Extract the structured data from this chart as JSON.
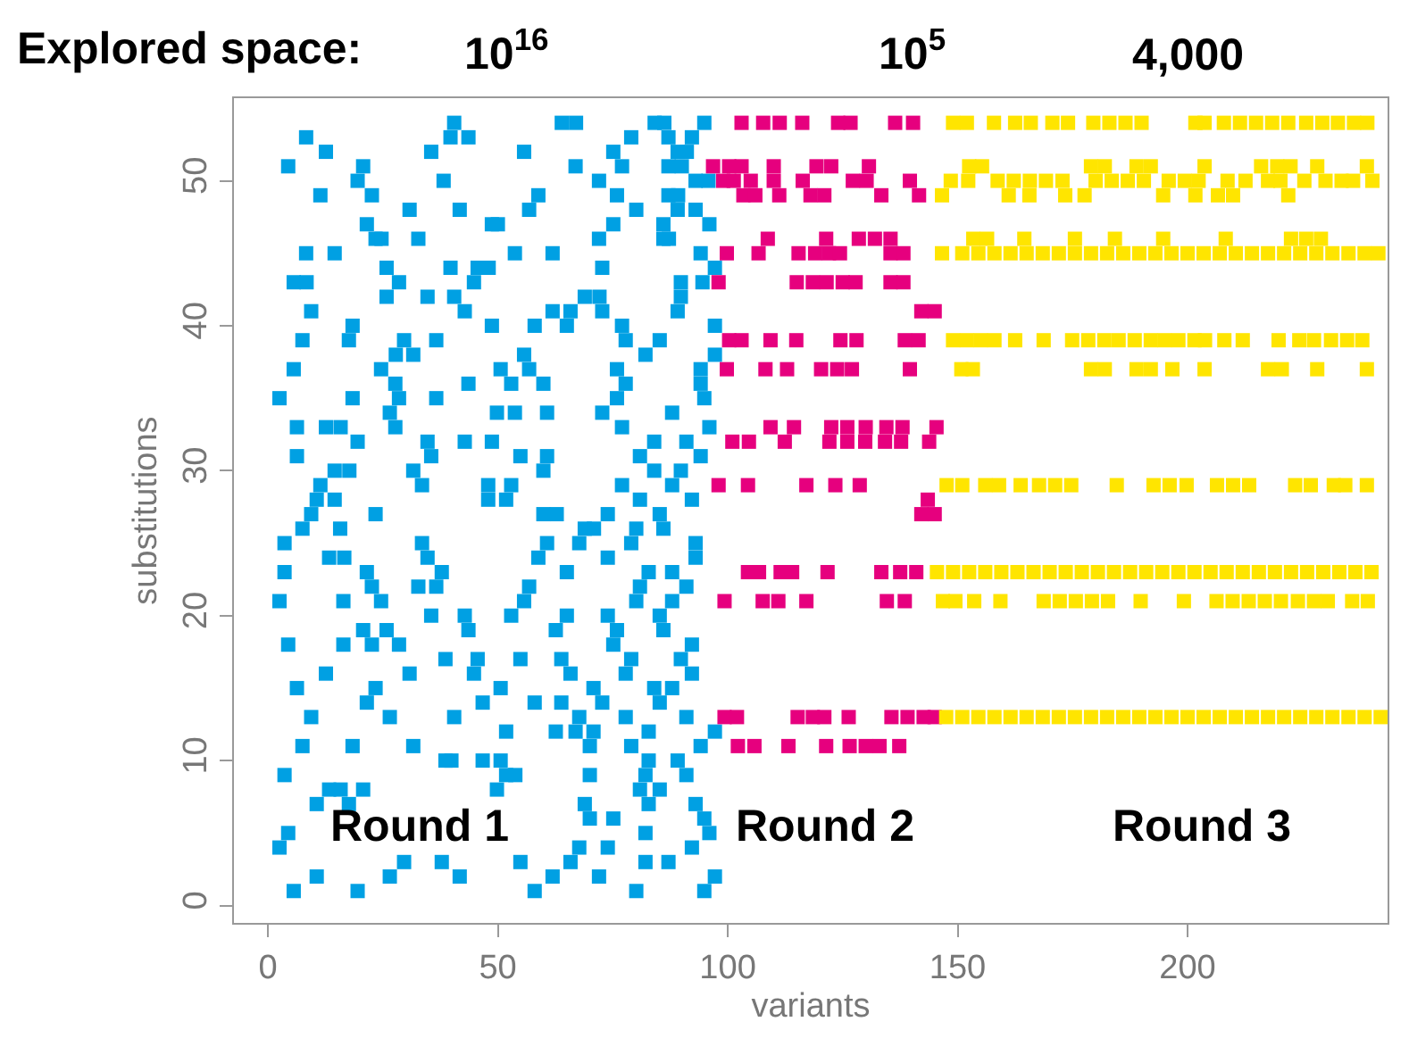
{
  "chart_data": {
    "type": "scatter",
    "title": "Explored space:",
    "xlabel": "variants",
    "ylabel": "substitutions",
    "annotations": [
      "10$^{16}$",
      "10$^{5}$",
      "4,000",
      "Round 1",
      "Round 2",
      "Round 3"
    ],
    "xlim": [
      -7.4,
      243.5
    ],
    "ylim": [
      -1.2,
      55.7
    ],
    "xticks": [
      0,
      50,
      100,
      150,
      200
    ],
    "yticks": [
      0,
      10,
      20,
      30,
      40,
      50
    ],
    "marker": "square",
    "series": [
      {
        "color": "#00a0e3",
        "x": [
          40.5,
          63.9,
          67.0,
          84.1,
          86.2,
          94.9,
          8.3,
          39.7,
          43.6,
          79.0,
          87.1,
          92.2,
          12.6,
          35.5,
          55.7,
          75.1,
          89.1,
          91.1,
          4.4,
          20.7,
          66.9,
          77.0,
          87.1,
          90.0,
          19.5,
          38.2,
          72.0,
          93.0,
          95.8,
          11.4,
          22.6,
          58.8,
          75.9,
          87.1,
          89.2,
          30.8,
          41.7,
          56.8,
          80.1,
          89.1,
          93.0,
          21.5,
          48.7,
          50.0,
          75.1,
          86.0,
          96.0,
          23.4,
          24.7,
          32.7,
          72.0,
          86.0,
          87.2,
          8.3,
          14.5,
          53.7,
          61.9,
          94.1,
          25.8,
          39.7,
          45.6,
          48.0,
          72.7,
          97.2,
          5.6,
          8.4,
          28.5,
          44.8,
          89.8,
          94.5,
          25.8,
          34.7,
          40.5,
          68.9,
          72.1,
          89.8,
          9.4,
          42.8,
          61.9,
          65.8,
          72.7,
          89.1,
          18.4,
          48.7,
          58.0,
          65.0,
          77.0,
          97.2,
          7.5,
          17.6,
          29.6,
          36.6,
          77.8,
          85.2,
          27.8,
          31.6,
          55.7,
          82.1,
          97.2,
          5.6,
          24.6,
          50.6,
          56.8,
          75.9,
          94.1,
          27.7,
          43.6,
          52.9,
          59.9,
          77.8,
          94.1,
          2.5,
          18.4,
          28.5,
          36.6,
          75.9,
          94.9,
          26.5,
          49.8,
          53.7,
          60.7,
          72.7,
          87.9,
          6.3,
          12.6,
          15.8,
          27.7,
          77.0,
          96.0,
          19.5,
          34.7,
          42.8,
          48.7,
          84.0,
          91.0,
          6.3,
          35.5,
          54.9,
          60.7,
          80.9,
          94.1,
          14.5,
          17.7,
          31.6,
          59.9,
          84.0,
          89.8,
          11.4,
          33.5,
          47.9,
          52.9,
          77.0,
          87.9,
          10.6,
          14.5,
          47.9,
          51.8,
          80.9,
          92.2,
          9.4,
          23.4,
          59.9,
          62.8,
          73.9,
          85.2,
          7.5,
          15.7,
          68.9,
          70.9,
          80.1,
          86.0,
          3.6,
          33.5,
          60.7,
          67.7,
          79.0,
          93.0,
          13.3,
          16.6,
          34.7,
          58.8,
          73.9,
          93.0,
          3.6,
          21.5,
          37.8,
          65.0,
          82.8,
          87.9,
          22.6,
          32.7,
          36.6,
          56.8,
          80.9,
          91.0,
          2.5,
          16.4,
          24.6,
          55.7,
          80.1,
          87.9,
          35.5,
          42.8,
          52.9,
          65.0,
          73.9,
          85.2,
          20.7,
          25.8,
          43.6,
          62.6,
          75.9,
          86.0,
          4.4,
          16.4,
          22.6,
          28.5,
          75.1,
          92.2,
          38.6,
          45.6,
          54.9,
          63.8,
          79.0,
          89.8,
          12.6,
          30.8,
          44.8,
          65.8,
          77.8,
          92.2,
          6.3,
          23.4,
          50.6,
          70.8,
          84.0,
          87.9,
          21.5,
          46.7,
          58.0,
          63.8,
          72.7,
          85.2,
          9.4,
          26.5,
          40.5,
          67.7,
          77.8,
          91.0,
          51.8,
          62.6,
          66.9,
          70.8,
          82.8,
          97.2,
          7.5,
          18.4,
          31.6,
          70.0,
          79.0,
          94.1,
          38.6,
          39.9,
          46.7,
          50.6,
          82.8,
          89.1,
          3.6,
          51.8,
          53.8,
          70.0,
          82.1,
          91.0,
          13.3,
          15.8,
          20.7,
          49.8,
          80.9,
          85.2,
          10.6,
          17.6,
          68.9,
          82.8,
          93.0,
          70.0,
          75.1,
          94.9,
          4.4,
          82.1,
          96.0,
          2.5,
          67.7,
          73.9,
          92.2,
          29.6,
          37.8,
          54.9,
          65.8,
          82.1,
          87.1,
          10.6,
          26.5,
          41.7,
          61.9,
          72.0,
          97.2,
          5.6,
          19.5,
          58.0,
          80.1,
          94.9
        ],
        "values": [
          54,
          54,
          54,
          54,
          54,
          54,
          53,
          53,
          53,
          53,
          53,
          53,
          52,
          52,
          52,
          52,
          52,
          52,
          51,
          51,
          51,
          51,
          51,
          51,
          50,
          50,
          50,
          50,
          50,
          49,
          49,
          49,
          49,
          49,
          49,
          48,
          48,
          48,
          48,
          48,
          48,
          47,
          47,
          47,
          47,
          47,
          47,
          46,
          46,
          46,
          46,
          46,
          46,
          45,
          45,
          45,
          45,
          45,
          44,
          44,
          44,
          44,
          44,
          44,
          43,
          43,
          43,
          43,
          43,
          43,
          42,
          42,
          42,
          42,
          42,
          42,
          41,
          41,
          41,
          41,
          41,
          41,
          40,
          40,
          40,
          40,
          40,
          40,
          39,
          39,
          39,
          39,
          39,
          39,
          38,
          38,
          38,
          38,
          38,
          37,
          37,
          37,
          37,
          37,
          37,
          36,
          36,
          36,
          36,
          36,
          36,
          35,
          35,
          35,
          35,
          35,
          35,
          34,
          34,
          34,
          34,
          34,
          34,
          33,
          33,
          33,
          33,
          33,
          33,
          32,
          32,
          32,
          32,
          32,
          32,
          31,
          31,
          31,
          31,
          31,
          31,
          30,
          30,
          30,
          30,
          30,
          30,
          29,
          29,
          29,
          29,
          29,
          29,
          28,
          28,
          28,
          28,
          28,
          28,
          27,
          27,
          27,
          27,
          27,
          27,
          26,
          26,
          26,
          26,
          26,
          26,
          25,
          25,
          25,
          25,
          25,
          25,
          24,
          24,
          24,
          24,
          24,
          24,
          23,
          23,
          23,
          23,
          23,
          23,
          22,
          22,
          22,
          22,
          22,
          22,
          21,
          21,
          21,
          21,
          21,
          21,
          20,
          20,
          20,
          20,
          20,
          20,
          19,
          19,
          19,
          19,
          19,
          19,
          18,
          18,
          18,
          18,
          18,
          18,
          17,
          17,
          17,
          17,
          17,
          17,
          16,
          16,
          16,
          16,
          16,
          16,
          15,
          15,
          15,
          15,
          15,
          15,
          14,
          14,
          14,
          14,
          14,
          14,
          13,
          13,
          13,
          13,
          13,
          13,
          12,
          12,
          12,
          12,
          12,
          12,
          11,
          11,
          11,
          11,
          11,
          11,
          10,
          10,
          10,
          10,
          10,
          10,
          9,
          9,
          9,
          9,
          9,
          9,
          8,
          8,
          8,
          8,
          8,
          8,
          7,
          7,
          7,
          7,
          7,
          6,
          6,
          6,
          5,
          5,
          5,
          4,
          4,
          4,
          4,
          3,
          3,
          3,
          3,
          3,
          3,
          2,
          2,
          2,
          2,
          2,
          2,
          1,
          1,
          1,
          1,
          1
        ]
      },
      {
        "color": "#e6007e",
        "x": [
          103.0,
          107.7,
          111.3,
          116.2,
          124.0,
          126.7,
          136.4,
          140.3,
          96.8,
          100.3,
          103.0,
          110.0,
          119.3,
          122.5,
          130.7,
          99.0,
          101.3,
          105.0,
          110.0,
          116.3,
          127.2,
          130.2,
          139.6,
          103.4,
          106.0,
          111.2,
          118.0,
          121.0,
          133.4,
          141.6,
          108.7,
          121.4,
          128.5,
          132.0,
          135.4,
          99.8,
          106.7,
          115.4,
          119.0,
          122.0,
          124.4,
          135.4,
          138.2,
          98.0,
          115.0,
          118.5,
          121.5,
          125.0,
          127.8,
          135.4,
          138.2,
          142.1,
          145.0,
          100.3,
          103.0,
          109.3,
          114.9,
          124.5,
          128.0,
          138.5,
          141.5,
          99.8,
          108.2,
          112.9,
          120.3,
          123.8,
          127.0,
          139.6,
          109.3,
          114.4,
          122.5,
          126.0,
          130.0,
          134.5,
          138.0,
          145.4,
          101.0,
          104.6,
          112.4,
          122.1,
          126.0,
          129.9,
          134.2,
          137.7,
          143.8,
          98.0,
          104.4,
          117.1,
          123.4,
          128.7,
          143.5,
          142.1,
          145.0,
          104.4,
          106.8,
          111.5,
          114.0,
          121.7,
          133.4,
          137.5,
          141.0,
          99.3,
          107.6,
          111.0,
          117.1,
          134.6,
          138.5,
          99.3,
          102.0,
          115.2,
          118.5,
          121.0,
          126.3,
          135.6,
          139.1,
          142.6,
          145.0,
          102.2,
          105.8,
          113.2,
          121.4,
          126.5,
          130.0,
          133.0,
          137.3
        ],
        "values": [
          54,
          54,
          54,
          54,
          54,
          54,
          54,
          54,
          51,
          51,
          51,
          51,
          51,
          51,
          51,
          50,
          50,
          50,
          50,
          50,
          50,
          50,
          50,
          49,
          49,
          49,
          49,
          49,
          49,
          49,
          46,
          46,
          46,
          46,
          46,
          45,
          45,
          45,
          45,
          45,
          45,
          45,
          45,
          43,
          43,
          43,
          43,
          43,
          43,
          43,
          43,
          41,
          41,
          39,
          39,
          39,
          39,
          39,
          39,
          39,
          39,
          37,
          37,
          37,
          37,
          37,
          37,
          37,
          33,
          33,
          33,
          33,
          33,
          33,
          33,
          33,
          32,
          32,
          32,
          32,
          32,
          32,
          32,
          32,
          32,
          29,
          29,
          29,
          29,
          29,
          28,
          27,
          27,
          23,
          23,
          23,
          23,
          23,
          23,
          23,
          23,
          21,
          21,
          21,
          21,
          21,
          21,
          13,
          13,
          13,
          13,
          13,
          13,
          13,
          13,
          13,
          13,
          11,
          11,
          11,
          11,
          11,
          11,
          11,
          11
        ]
      },
      {
        "color": "#ffe500",
        "x": [
          149.0,
          152.0,
          157.9,
          162.5,
          165.9,
          170.6,
          174.0,
          179.5,
          183.0,
          186.5,
          190.0,
          201.7,
          203.7,
          207.9,
          211.4,
          214.9,
          218.4,
          221.9,
          225.8,
          229.3,
          232.7,
          236.2,
          239.1,
          152.5,
          155.3,
          179.0,
          182.0,
          188.9,
          192.0,
          203.7,
          216.0,
          219.5,
          222.4,
          228.2,
          239.0,
          148.5,
          152.3,
          158.7,
          162.2,
          165.7,
          169.2,
          172.8,
          180.0,
          183.5,
          187.0,
          190.5,
          195.9,
          199.4,
          202.4,
          208.7,
          212.6,
          217.5,
          220.2,
          225.4,
          230.0,
          233.5,
          236.0,
          240.2,
          146.6,
          161.1,
          165.6,
          173.4,
          177.6,
          194.7,
          201.7,
          206.6,
          209.9,
          221.9,
          153.4,
          156.4,
          164.5,
          175.5,
          184.2,
          194.7,
          208.3,
          222.5,
          225.8,
          229.0,
          146.6,
          151.0,
          154.5,
          158.0,
          161.5,
          165.0,
          168.5,
          172.0,
          175.5,
          179.0,
          182.5,
          186.0,
          189.5,
          193.0,
          196.5,
          200.0,
          203.5,
          207.0,
          210.5,
          214.0,
          217.5,
          221.0,
          224.5,
          228.0,
          231.5,
          235.0,
          238.5,
          241.5,
          149.0,
          152.0,
          155.0,
          158.0,
          162.5,
          168.7,
          174.9,
          178.4,
          181.9,
          185.0,
          188.5,
          192.0,
          195.0,
          198.0,
          201.5,
          203.8,
          208.0,
          212.0,
          219.8,
          224.3,
          227.5,
          231.2,
          234.7,
          238.0,
          150.8,
          153.3,
          179.0,
          182.0,
          188.9,
          192.0,
          196.7,
          203.7,
          217.5,
          220.5,
          228.2,
          239.0,
          147.6,
          151.0,
          156.0,
          159.0,
          163.7,
          167.7,
          171.2,
          174.7,
          184.6,
          192.6,
          196.1,
          199.8,
          206.4,
          209.9,
          213.4,
          223.4,
          226.8,
          231.8,
          234.3,
          239.0,
          145.5,
          149.0,
          152.5,
          156.0,
          159.5,
          163.0,
          166.5,
          170.0,
          173.5,
          177.0,
          180.5,
          184.0,
          187.5,
          191.0,
          194.5,
          198.0,
          201.5,
          205.0,
          208.5,
          212.0,
          215.5,
          219.0,
          222.5,
          226.0,
          229.5,
          233.0,
          236.5,
          240.0,
          146.8,
          149.5,
          153.6,
          159.3,
          168.7,
          172.2,
          175.7,
          179.2,
          182.7,
          189.8,
          199.2,
          206.3,
          209.8,
          213.3,
          216.8,
          220.3,
          224.0,
          227.5,
          230.5,
          235.8,
          239.2,
          147.5,
          151.0,
          154.5,
          158.0,
          161.5,
          165.0,
          168.5,
          172.0,
          175.5,
          179.0,
          182.5,
          186.0,
          189.5,
          193.0,
          196.5,
          200.0,
          203.5,
          207.0,
          210.5,
          214.0,
          217.5,
          221.0,
          224.5,
          228.0,
          231.5,
          235.0,
          238.5,
          242.0
        ],
        "values": [
          54,
          54,
          54,
          54,
          54,
          54,
          54,
          54,
          54,
          54,
          54,
          54,
          54,
          54,
          54,
          54,
          54,
          54,
          54,
          54,
          54,
          54,
          54,
          51,
          51,
          51,
          51,
          51,
          51,
          51,
          51,
          51,
          51,
          51,
          51,
          50,
          50,
          50,
          50,
          50,
          50,
          50,
          50,
          50,
          50,
          50,
          50,
          50,
          50,
          50,
          50,
          50,
          50,
          50,
          50,
          50,
          50,
          50,
          49,
          49,
          49,
          49,
          49,
          49,
          49,
          49,
          49,
          49,
          46,
          46,
          46,
          46,
          46,
          46,
          46,
          46,
          46,
          46,
          45,
          45,
          45,
          45,
          45,
          45,
          45,
          45,
          45,
          45,
          45,
          45,
          45,
          45,
          45,
          45,
          45,
          45,
          45,
          45,
          45,
          45,
          45,
          45,
          45,
          45,
          45,
          45,
          39,
          39,
          39,
          39,
          39,
          39,
          39,
          39,
          39,
          39,
          39,
          39,
          39,
          39,
          39,
          39,
          39,
          39,
          39,
          39,
          39,
          39,
          39,
          39,
          37,
          37,
          37,
          37,
          37,
          37,
          37,
          37,
          37,
          37,
          37,
          37,
          29,
          29,
          29,
          29,
          29,
          29,
          29,
          29,
          29,
          29,
          29,
          29,
          29,
          29,
          29,
          29,
          29,
          29,
          29,
          29,
          23,
          23,
          23,
          23,
          23,
          23,
          23,
          23,
          23,
          23,
          23,
          23,
          23,
          23,
          23,
          23,
          23,
          23,
          23,
          23,
          23,
          23,
          23,
          23,
          23,
          23,
          23,
          23,
          21,
          21,
          21,
          21,
          21,
          21,
          21,
          21,
          21,
          21,
          21,
          21,
          21,
          21,
          21,
          21,
          21,
          21,
          21,
          21,
          21,
          13,
          13,
          13,
          13,
          13,
          13,
          13,
          13,
          13,
          13,
          13,
          13,
          13,
          13,
          13,
          13,
          13,
          13,
          13,
          13,
          13,
          13,
          13,
          13,
          13,
          13,
          13,
          13
        ]
      }
    ]
  }
}
